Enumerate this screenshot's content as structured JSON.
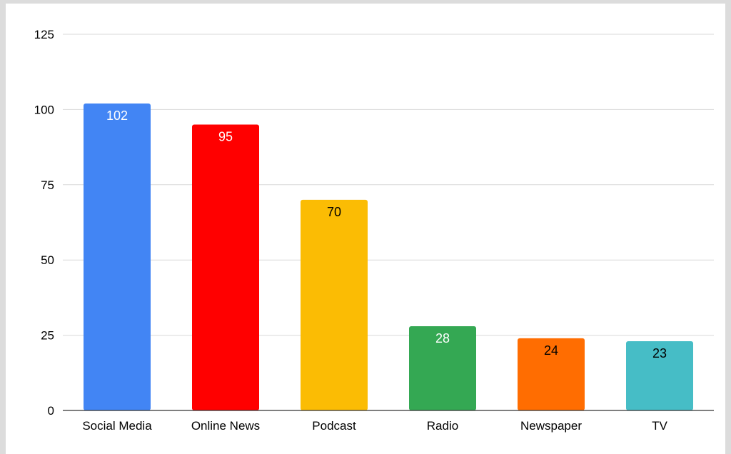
{
  "chart_data": {
    "type": "bar",
    "categories": [
      "Social Media",
      "Online News",
      "Podcast",
      "Radio",
      "Newspaper",
      "TV"
    ],
    "values": [
      102,
      95,
      70,
      28,
      24,
      23
    ],
    "bar_colors": [
      "#4285f4",
      "#ff0000",
      "#fbbc04",
      "#34a853",
      "#ff6d01",
      "#46bdc6"
    ],
    "data_label_colors": [
      "#ffffff",
      "#ffffff",
      "#000000",
      "#ffffff",
      "#000000",
      "#000000"
    ],
    "yticks": [
      0,
      25,
      50,
      75,
      100,
      125
    ],
    "ylim": [
      0,
      125
    ],
    "grid": true,
    "legend": "none"
  }
}
